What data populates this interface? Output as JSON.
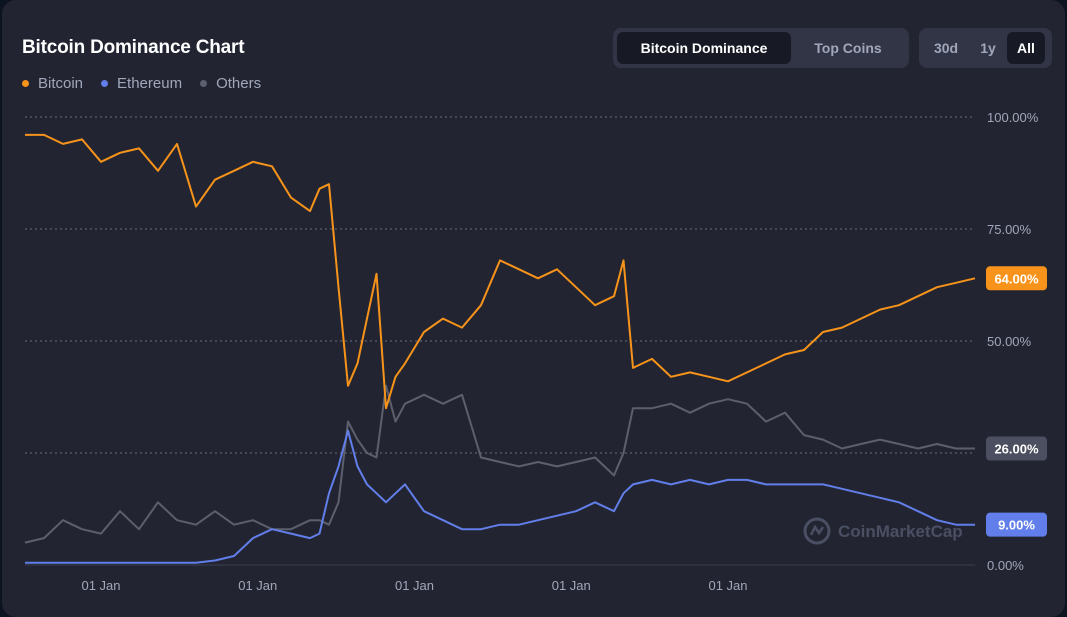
{
  "title": "Bitcoin Dominance Chart",
  "tabs": [
    {
      "label": "Bitcoin Dominance",
      "active": true
    },
    {
      "label": "Top Coins",
      "active": false
    }
  ],
  "ranges": [
    {
      "label": "30d",
      "active": false
    },
    {
      "label": "1y",
      "active": false
    },
    {
      "label": "All",
      "active": true
    }
  ],
  "watermark": "CoinMarketCap",
  "watermark_icon": "coinmarketcap-logo-icon",
  "colors": {
    "bitcoin": "#f7931a",
    "ethereum": "#627eea",
    "others": "#5c5f6e",
    "grid": "#a1a7bb"
  },
  "chart_data": {
    "type": "line",
    "title": "Bitcoin Dominance Chart",
    "xlabel": "",
    "ylabel": "",
    "ylim": [
      0,
      100
    ],
    "y_ticks": [
      "100.00%",
      "75.00%",
      "50.00%",
      "25.00%",
      "0.00%"
    ],
    "y_tick_values": [
      100,
      75,
      50,
      25,
      0
    ],
    "x_ticks": [
      "01 Jan",
      "01 Jan",
      "01 Jan",
      "01 Jan",
      "01 Jan"
    ],
    "x_tick_fractions": [
      0.08,
      0.245,
      0.41,
      0.575,
      0.74
    ],
    "grid": true,
    "legend": "top-left",
    "x": [
      0,
      0.02,
      0.04,
      0.06,
      0.08,
      0.1,
      0.12,
      0.14,
      0.16,
      0.18,
      0.2,
      0.22,
      0.24,
      0.26,
      0.28,
      0.3,
      0.31,
      0.32,
      0.33,
      0.34,
      0.35,
      0.36,
      0.37,
      0.38,
      0.39,
      0.4,
      0.42,
      0.44,
      0.46,
      0.48,
      0.5,
      0.52,
      0.54,
      0.56,
      0.58,
      0.6,
      0.62,
      0.63,
      0.64,
      0.66,
      0.68,
      0.7,
      0.72,
      0.74,
      0.76,
      0.78,
      0.8,
      0.82,
      0.84,
      0.86,
      0.88,
      0.9,
      0.92,
      0.94,
      0.96,
      0.98,
      1.0
    ],
    "series": [
      {
        "name": "Bitcoin",
        "color": "#f7931a",
        "current_label": "64.00%",
        "values": [
          96,
          96,
          94,
          95,
          90,
          92,
          93,
          88,
          94,
          80,
          86,
          88,
          90,
          89,
          82,
          79,
          84,
          85,
          62,
          40,
          45,
          55,
          65,
          35,
          42,
          45,
          52,
          55,
          53,
          58,
          68,
          66,
          64,
          66,
          62,
          58,
          60,
          68,
          44,
          46,
          42,
          43,
          42,
          41,
          43,
          45,
          47,
          48,
          52,
          53,
          55,
          57,
          58,
          60,
          62,
          63,
          64
        ]
      },
      {
        "name": "Ethereum",
        "color": "#627eea",
        "current_label": "9.00%",
        "values": [
          0.5,
          0.5,
          0.5,
          0.5,
          0.5,
          0.5,
          0.5,
          0.5,
          0.5,
          0.5,
          1,
          2,
          6,
          8,
          7,
          6,
          7,
          16,
          22,
          30,
          22,
          18,
          16,
          14,
          16,
          18,
          12,
          10,
          8,
          8,
          9,
          9,
          10,
          11,
          12,
          14,
          12,
          16,
          18,
          19,
          18,
          19,
          18,
          19,
          19,
          18,
          18,
          18,
          18,
          17,
          16,
          15,
          14,
          12,
          10,
          9,
          9
        ]
      },
      {
        "name": "Others",
        "color": "#5c5f6e",
        "current_label": "26.00%",
        "values": [
          5,
          6,
          10,
          8,
          7,
          12,
          8,
          14,
          10,
          9,
          12,
          9,
          10,
          8,
          8,
          10,
          10,
          9,
          14,
          32,
          28,
          25,
          24,
          40,
          32,
          36,
          38,
          36,
          38,
          24,
          23,
          22,
          23,
          22,
          23,
          24,
          20,
          25,
          35,
          35,
          36,
          34,
          36,
          37,
          36,
          32,
          34,
          29,
          28,
          26,
          27,
          28,
          27,
          26,
          27,
          26,
          26
        ]
      }
    ]
  }
}
